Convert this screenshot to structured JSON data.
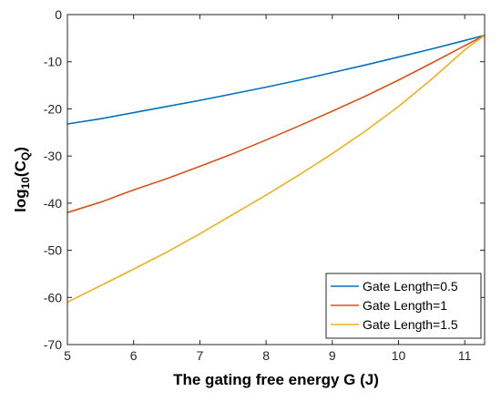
{
  "chart_data": {
    "type": "line",
    "xlabel": "The gating free energy G (J)",
    "ylabel": {
      "prefix": "log",
      "sub": "10",
      "mid": "(C",
      "sub2": "Q",
      "suffix": ")"
    },
    "xlim": [
      5,
      11.3
    ],
    "ylim": [
      -70,
      0
    ],
    "xticks": [
      5,
      6,
      7,
      8,
      9,
      10,
      11
    ],
    "yticks": [
      0,
      -10,
      -20,
      -30,
      -40,
      -50,
      -60,
      -70
    ],
    "legend_position": "bottom-right",
    "grid": false,
    "series": [
      {
        "name": "Gate Length=0.5",
        "color": "#0072BD",
        "x": [
          5,
          5.5,
          6,
          6.5,
          7,
          7.5,
          8,
          8.5,
          9,
          9.5,
          10,
          10.5,
          11,
          11.3
        ],
        "y": [
          -23.2,
          -22.1,
          -20.8,
          -19.5,
          -18.2,
          -16.8,
          -15.4,
          -13.9,
          -12.3,
          -10.7,
          -9.0,
          -7.3,
          -5.5,
          -4.4
        ]
      },
      {
        "name": "Gate Length=1",
        "color": "#D95319",
        "x": [
          5,
          5.5,
          6,
          6.5,
          7,
          7.5,
          8,
          8.5,
          9,
          9.5,
          10,
          10.5,
          11,
          11.3
        ],
        "y": [
          -42.0,
          -39.8,
          -37.2,
          -34.8,
          -32.2,
          -29.5,
          -26.6,
          -23.6,
          -20.5,
          -17.3,
          -13.9,
          -10.3,
          -6.6,
          -4.4
        ]
      },
      {
        "name": "Gate Length=1.5",
        "color": "#EDB120",
        "x": [
          5,
          5.5,
          6,
          6.5,
          7,
          7.5,
          8,
          8.5,
          9,
          9.5,
          10,
          10.5,
          11,
          11.3
        ],
        "y": [
          -61.0,
          -57.5,
          -54.0,
          -50.4,
          -46.5,
          -42.4,
          -38.3,
          -34.0,
          -29.5,
          -24.7,
          -19.5,
          -13.7,
          -7.5,
          -4.4
        ]
      }
    ]
  }
}
